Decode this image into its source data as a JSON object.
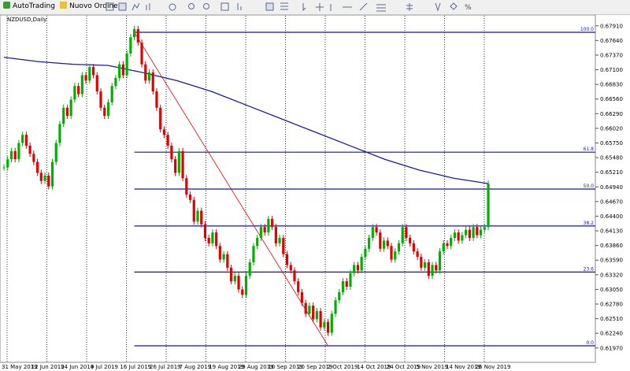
{
  "toolbar": {
    "buttons": [
      "AutoTrading",
      "Nuovo Ordine"
    ]
  },
  "chart_data": {
    "type": "candlestick",
    "title": "NZDUSD,Daily",
    "up_color": "#00b000",
    "down_color": "#e00000",
    "ma_color": "#1a1aa8",
    "fibo_color": "#1515b0",
    "trend_color": "#e00000",
    "close": [
      0.653,
      0.6545,
      0.656,
      0.6545,
      0.6575,
      0.659,
      0.657,
      0.6555,
      0.654,
      0.652,
      0.6505,
      0.6515,
      0.6495,
      0.654,
      0.6575,
      0.661,
      0.664,
      0.6625,
      0.6655,
      0.668,
      0.6665,
      0.67,
      0.669,
      0.6715,
      0.67,
      0.667,
      0.664,
      0.6625,
      0.665,
      0.668,
      0.6695,
      0.672,
      0.67,
      0.674,
      0.677,
      0.6785,
      0.676,
      0.672,
      0.669,
      0.6705,
      0.667,
      0.664,
      0.66,
      0.659,
      0.657,
      0.6545,
      0.652,
      0.656,
      0.651,
      0.648,
      0.647,
      0.643,
      0.645,
      0.6425,
      0.64,
      0.639,
      0.641,
      0.6385,
      0.636,
      0.637,
      0.6345,
      0.632,
      0.633,
      0.6305,
      0.6295,
      0.633,
      0.6355,
      0.6385,
      0.64,
      0.642,
      0.641,
      0.6435,
      0.642,
      0.639,
      0.64,
      0.637,
      0.635,
      0.634,
      0.632,
      0.63,
      0.628,
      0.626,
      0.6275,
      0.625,
      0.6265,
      0.6235,
      0.6245,
      0.6225,
      0.626,
      0.6285,
      0.63,
      0.632,
      0.631,
      0.6335,
      0.635,
      0.634,
      0.6365,
      0.638,
      0.64,
      0.642,
      0.641,
      0.638,
      0.6395,
      0.6385,
      0.636,
      0.6375,
      0.639,
      0.642,
      0.64,
      0.639,
      0.6375,
      0.6365,
      0.6345,
      0.6355,
      0.633,
      0.635,
      0.634,
      0.6375,
      0.639,
      0.6385,
      0.64,
      0.641,
      0.6395,
      0.6405,
      0.6415,
      0.64,
      0.642,
      0.6405,
      0.6415,
      0.642,
      0.65
    ],
    "ma": [
      0.6733,
      0.6725,
      0.672,
      0.6718,
      0.6705,
      0.669,
      0.667,
      0.6645,
      0.662,
      0.6595,
      0.657,
      0.6545,
      0.6525,
      0.651,
      0.65
    ],
    "fibo": [
      {
        "label": "100.0",
        "price": 0.6779
      },
      {
        "label": "61.8",
        "price": 0.6558
      },
      {
        "label": "50.0",
        "price": 0.649
      },
      {
        "label": "38.2",
        "price": 0.6422
      },
      {
        "label": "23.6",
        "price": 0.6337
      },
      {
        "label": "0.0",
        "price": 0.6201
      }
    ],
    "ylim": [
      0.6172,
      0.6811
    ],
    "yticks": [
      {
        "value": 0.6791,
        "label": "0.67910"
      },
      {
        "value": 0.6764,
        "label": "0.67640"
      },
      {
        "value": 0.6737,
        "label": "0.67370"
      },
      {
        "value": 0.671,
        "label": "0.67100"
      },
      {
        "value": 0.6683,
        "label": "0.66830"
      },
      {
        "value": 0.6656,
        "label": "0.66560"
      },
      {
        "value": 0.6629,
        "label": "0.66290"
      },
      {
        "value": 0.6602,
        "label": "0.66020"
      },
      {
        "value": 0.6575,
        "label": "0.65750"
      },
      {
        "value": 0.6548,
        "label": "0.65480"
      },
      {
        "value": 0.6521,
        "label": "0.65210"
      },
      {
        "value": 0.6494,
        "label": "0.64940"
      },
      {
        "value": 0.6467,
        "label": "0.64670"
      },
      {
        "value": 0.644,
        "label": "0.64400"
      },
      {
        "value": 0.6413,
        "label": "0.64130"
      },
      {
        "value": 0.6386,
        "label": "0.63860"
      },
      {
        "value": 0.6359,
        "label": "0.63590"
      },
      {
        "value": 0.6332,
        "label": "0.63320"
      },
      {
        "value": 0.6305,
        "label": "0.63050"
      },
      {
        "value": 0.6278,
        "label": "0.62780"
      },
      {
        "value": 0.6251,
        "label": "0.62510"
      },
      {
        "value": 0.6224,
        "label": "0.62240"
      },
      {
        "value": 0.6197,
        "label": "0.61970"
      }
    ],
    "dates": [
      "31 May 2019",
      "12 Jun 2019",
      "24 Jun 2019",
      "4 Jul 2019",
      "16 Jul 2019",
      "26 Jul 2019",
      "7 Aug 2019",
      "19 Aug 2019",
      "29 Aug 2019",
      "10 Sep 2019",
      "20 Sep 2019",
      "2 Oct 2019",
      "14 Oct 2019",
      "24 Oct 2019",
      "5 Nov 2019",
      "14 Nov 2019",
      "26 Nov 2019"
    ]
  }
}
